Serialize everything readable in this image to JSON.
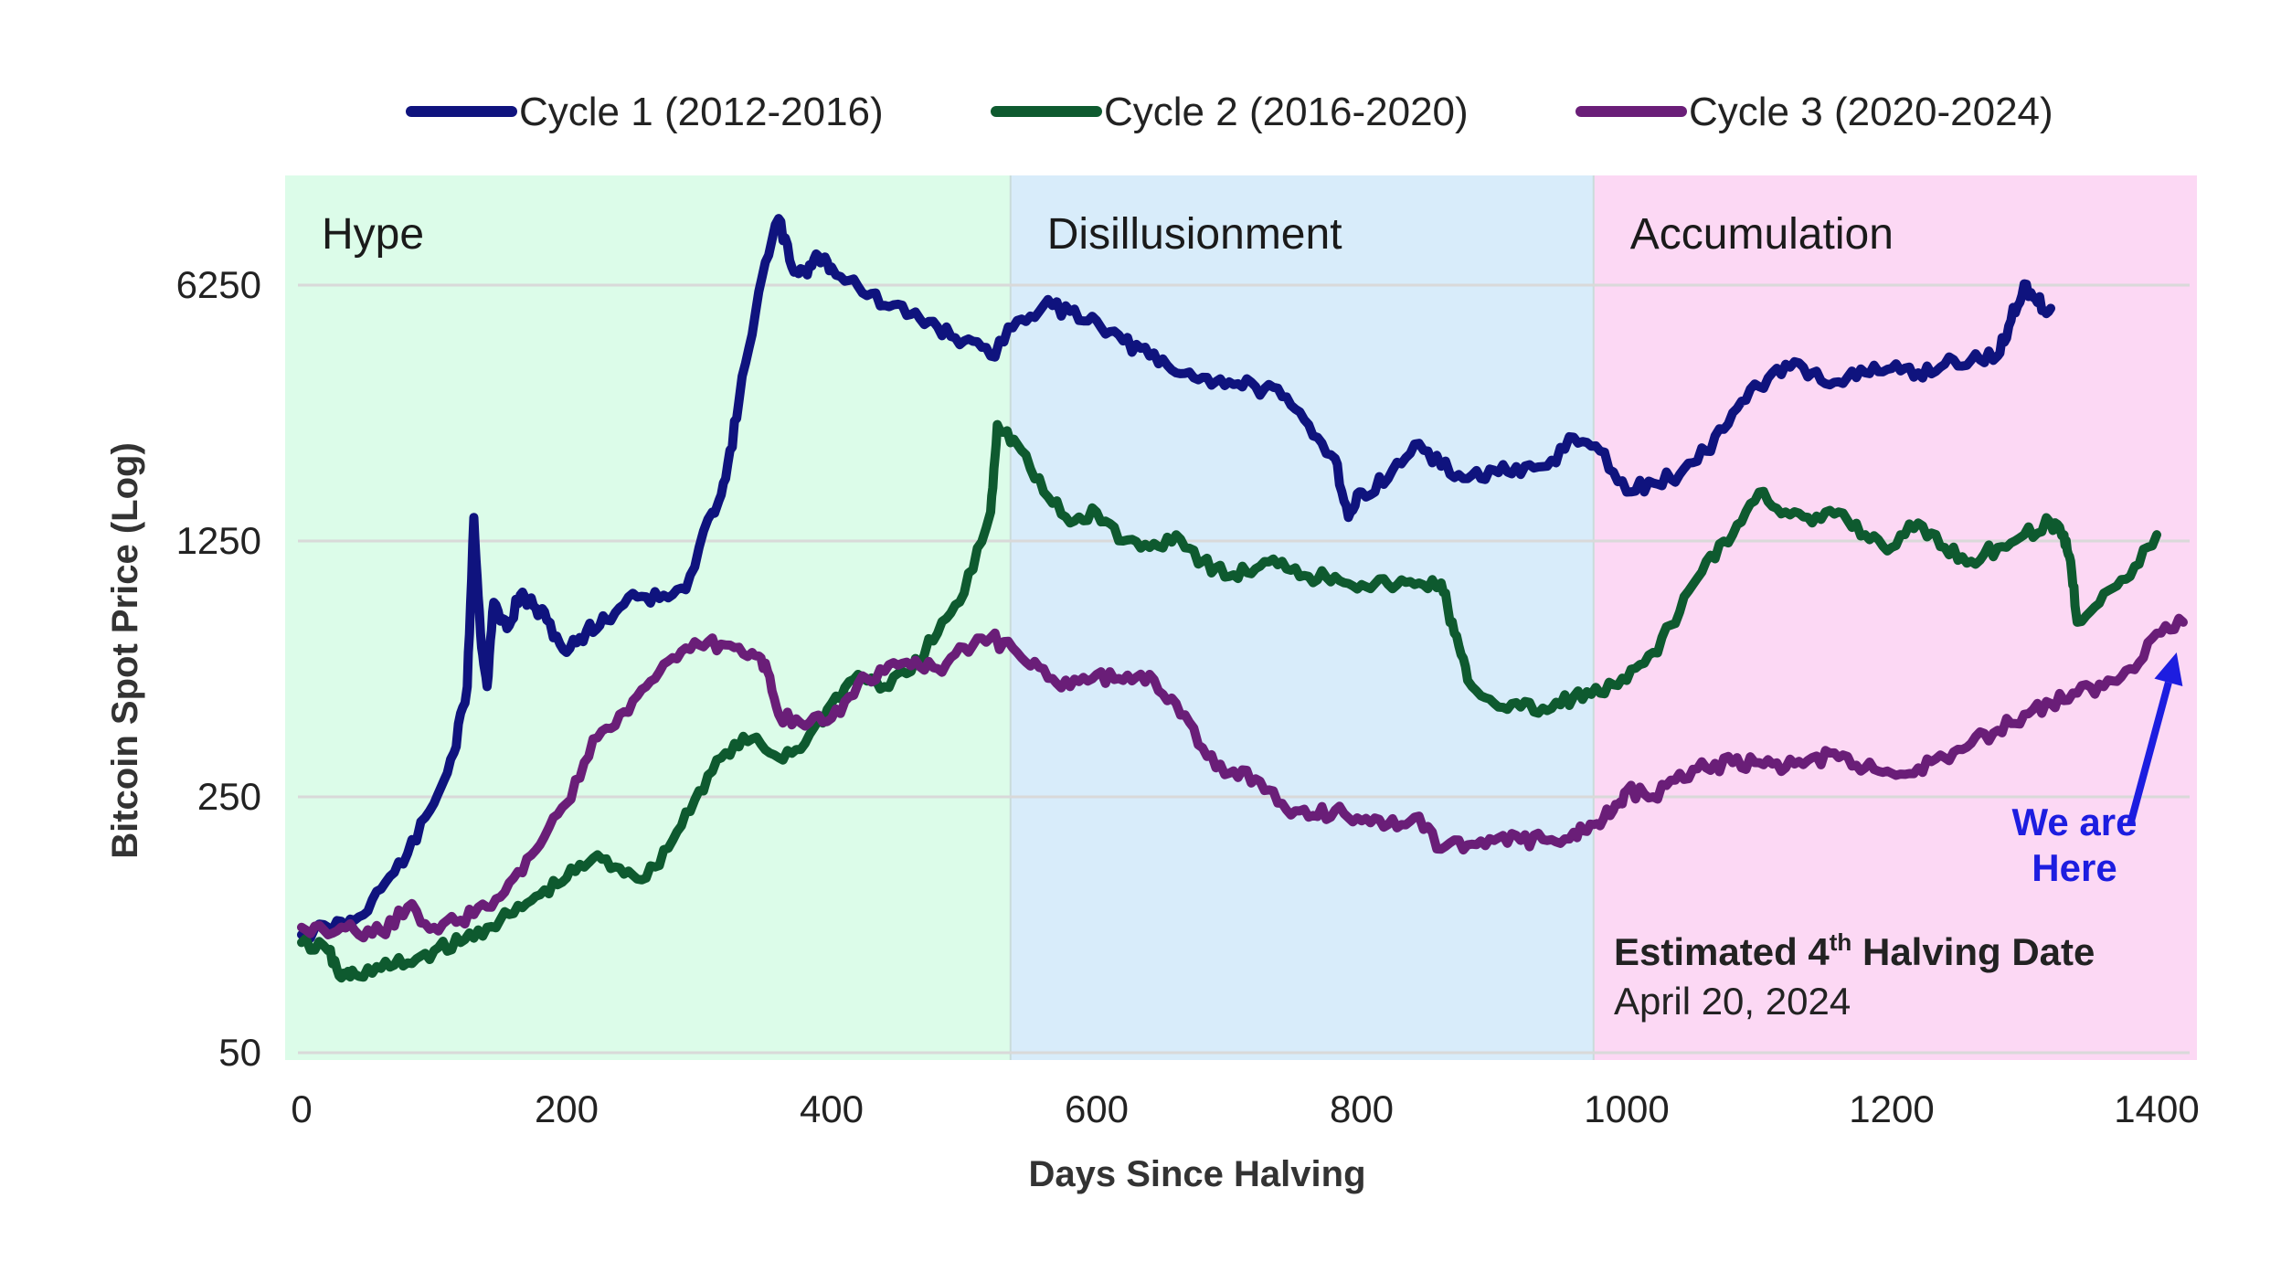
{
  "chart_data": {
    "type": "line",
    "title": "",
    "xlabel": "Days Since Halving",
    "ylabel": "Bitcoin Spot Price (Log)",
    "xlim": [
      0,
      1400
    ],
    "ylim": [
      50,
      12500
    ],
    "yscale": "log",
    "xticks": [
      0,
      200,
      400,
      600,
      800,
      1000,
      1200,
      1400
    ],
    "yticks": [
      50,
      250,
      1250,
      6250
    ],
    "grid": "horizontal",
    "legend_position": "top",
    "regions": [
      {
        "label": "Hype",
        "x_start": 0,
        "x_end": 535,
        "color": "#dcfce9"
      },
      {
        "label": "Disillusionment",
        "x_start": 535,
        "x_end": 975,
        "color": "#d8ecfa"
      },
      {
        "label": "Accumulation",
        "x_start": 975,
        "x_end": 1420,
        "color": "#fcd8f4"
      }
    ],
    "series": [
      {
        "name": "Cycle 1 (2012-2016)",
        "color": "#0f137e",
        "x": [
          0,
          20,
          40,
          60,
          80,
          100,
          115,
          125,
          130,
          135,
          140,
          145,
          155,
          165,
          175,
          185,
          200,
          215,
          230,
          250,
          270,
          290,
          310,
          320,
          330,
          345,
          360,
          370,
          380,
          390,
          400,
          420,
          440,
          460,
          480,
          500,
          520,
          540,
          560,
          580,
          600,
          620,
          640,
          660,
          680,
          700,
          720,
          740,
          760,
          780,
          790,
          800,
          820,
          840,
          860,
          880,
          900,
          920,
          940,
          960,
          980,
          1000,
          1020,
          1040,
          1060,
          1080,
          1100,
          1120,
          1140,
          1160,
          1180,
          1200,
          1220,
          1240,
          1260,
          1280,
          1290,
          1300,
          1310,
          1320
        ],
        "values": [
          105,
          110,
          115,
          140,
          175,
          240,
          330,
          500,
          1450,
          700,
          500,
          850,
          720,
          890,
          830,
          760,
          620,
          710,
          760,
          900,
          870,
          920,
          1500,
          1850,
          3000,
          6000,
          9500,
          7000,
          6800,
          7500,
          7000,
          6200,
          5500,
          5200,
          4800,
          4400,
          4000,
          5000,
          5500,
          5300,
          5000,
          4400,
          4000,
          3600,
          3500,
          3400,
          3300,
          3100,
          2600,
          2100,
          1450,
          1700,
          1850,
          2300,
          2000,
          1850,
          1950,
          1900,
          2000,
          2400,
          2200,
          1700,
          1800,
          1900,
          2200,
          2800,
          3300,
          3800,
          3600,
          3400,
          3600,
          3700,
          3600,
          3800,
          3900,
          4000,
          5000,
          6300,
          5600,
          5400
        ]
      },
      {
        "name": "Cycle 2 (2016-2020)",
        "color": "#0e5a2f",
        "x": [
          0,
          20,
          30,
          40,
          60,
          80,
          100,
          120,
          140,
          160,
          180,
          200,
          220,
          240,
          260,
          280,
          300,
          320,
          340,
          360,
          380,
          400,
          420,
          440,
          460,
          480,
          500,
          520,
          525,
          540,
          560,
          580,
          600,
          620,
          640,
          660,
          680,
          700,
          720,
          740,
          760,
          780,
          800,
          820,
          840,
          860,
          870,
          880,
          900,
          920,
          940,
          960,
          980,
          1000,
          1020,
          1040,
          1060,
          1080,
          1100,
          1120,
          1140,
          1160,
          1180,
          1200,
          1220,
          1240,
          1260,
          1280,
          1300,
          1320,
          1330,
          1335,
          1340,
          1360,
          1380,
          1400
        ],
        "values": [
          100,
          95,
          80,
          82,
          85,
          88,
          95,
          100,
          110,
          120,
          135,
          150,
          170,
          160,
          150,
          190,
          260,
          330,
          360,
          320,
          350,
          450,
          540,
          500,
          550,
          700,
          900,
          1500,
          2600,
          2300,
          1700,
          1400,
          1500,
          1250,
          1200,
          1300,
          1100,
          1000,
          1050,
          1100,
          1000,
          1000,
          950,
          950,
          950,
          960,
          700,
          520,
          450,
          440,
          430,
          470,
          480,
          520,
          620,
          800,
          1100,
          1300,
          1700,
          1500,
          1400,
          1500,
          1300,
          1200,
          1400,
          1200,
          1100,
          1200,
          1300,
          1400,
          1300,
          1100,
          750,
          900,
          1000,
          1300
        ]
      },
      {
        "name": "Cycle 3 (2020-2024)",
        "color": "#6a1e78",
        "x": [
          0,
          20,
          40,
          60,
          80,
          100,
          120,
          140,
          160,
          180,
          200,
          220,
          240,
          260,
          280,
          300,
          320,
          340,
          350,
          360,
          380,
          400,
          420,
          440,
          460,
          480,
          500,
          520,
          540,
          560,
          580,
          600,
          620,
          640,
          660,
          680,
          700,
          720,
          740,
          760,
          780,
          800,
          820,
          840,
          860,
          880,
          900,
          920,
          940,
          960,
          975,
          990,
          1000,
          1020,
          1040,
          1060,
          1080,
          1100,
          1120,
          1140,
          1160,
          1180,
          1200,
          1220,
          1240,
          1260,
          1280,
          1300,
          1320,
          1340,
          1360,
          1380,
          1400,
          1420
        ],
        "values": [
          110,
          105,
          108,
          107,
          125,
          110,
          115,
          125,
          150,
          185,
          240,
          360,
          420,
          500,
          600,
          650,
          650,
          620,
          580,
          420,
          390,
          410,
          510,
          550,
          570,
          560,
          640,
          680,
          620,
          560,
          500,
          540,
          520,
          540,
          450,
          340,
          290,
          280,
          240,
          220,
          230,
          215,
          210,
          220,
          180,
          185,
          190,
          190,
          190,
          200,
          210,
          230,
          260,
          250,
          290,
          300,
          310,
          310,
          300,
          320,
          320,
          300,
          290,
          300,
          320,
          350,
          380,
          420,
          450,
          480,
          500,
          560,
          700,
          750
        ]
      }
    ],
    "annotations": [
      {
        "text_bold": "Estimated 4",
        "superscript": "th",
        "text_bold_rest": " Halving Date",
        "text": "April 20, 2024"
      },
      {
        "lines": [
          "We are",
          "Here"
        ],
        "arrow_from": [
          1380,
          210
        ],
        "arrow_to": [
          1415,
          620
        ],
        "color": "#1d1de0"
      }
    ]
  }
}
